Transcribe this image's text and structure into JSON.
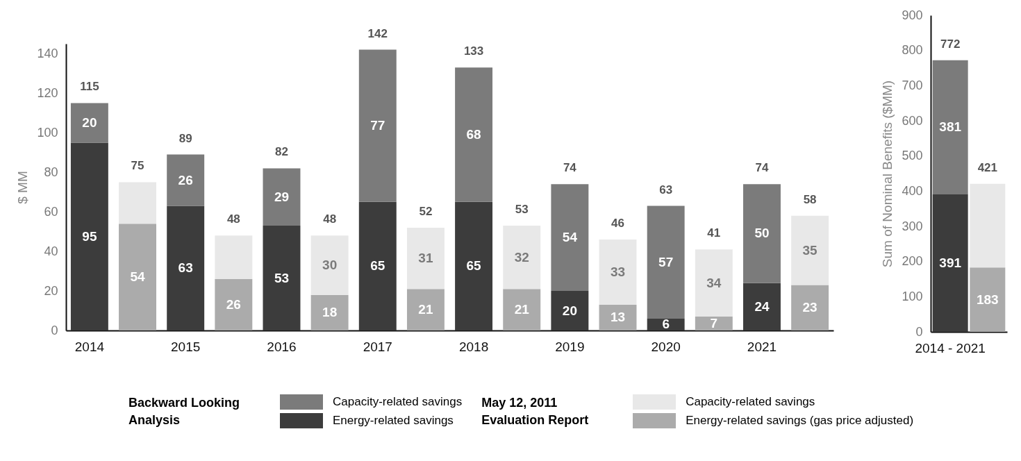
{
  "chart_data": [
    {
      "type": "bar",
      "stacked": true,
      "ylabel": "$ MM",
      "ylim": [
        0,
        145
      ],
      "yticks": [
        0,
        20,
        40,
        60,
        80,
        100,
        120,
        140
      ],
      "grid": false,
      "legend": "bottom",
      "legend_title": [
        "Backward Looking Analysis",
        "May 12, 2011 Evaluation Report"
      ],
      "categories": [
        "2014",
        null,
        "2015",
        null,
        "2016",
        null,
        "2017",
        null,
        "2018",
        null,
        "2019",
        null,
        "2020",
        null,
        "2021",
        null
      ],
      "series": [
        {
          "name": "Energy-related savings",
          "color": "#3c3c3c",
          "values": [
            95,
            null,
            63,
            null,
            53,
            null,
            65,
            null,
            65,
            null,
            20,
            null,
            6,
            null,
            24,
            null
          ],
          "value_labels": [
            "95",
            null,
            "63",
            null,
            "53",
            null,
            "65",
            null,
            "65",
            null,
            "20",
            null,
            "6",
            null,
            "24",
            null
          ]
        },
        {
          "name": "Capacity-related savings",
          "color": "#7b7b7b",
          "values": [
            20,
            null,
            26,
            null,
            29,
            null,
            77,
            null,
            68,
            null,
            54,
            null,
            57,
            null,
            50,
            null
          ],
          "value_labels": [
            "20",
            null,
            "26",
            null,
            "29",
            null,
            "77",
            null,
            "68",
            null,
            "54",
            null,
            "57",
            null,
            "50",
            null
          ]
        },
        {
          "name": "Energy-related savings (gas price adjusted)",
          "color": "#ababab",
          "values": [
            null,
            54,
            null,
            26,
            null,
            18,
            null,
            21,
            null,
            21,
            null,
            13,
            null,
            7,
            null,
            23
          ],
          "value_labels": [
            null,
            "54",
            null,
            "26",
            null,
            "18",
            null,
            "21",
            null,
            "21",
            null,
            "13",
            null,
            "7",
            null,
            "23"
          ]
        },
        {
          "name": "Capacity-related savings",
          "color": "#e8e8e8",
          "values": [
            null,
            21,
            null,
            22,
            null,
            30,
            null,
            31,
            null,
            32,
            null,
            33,
            null,
            34,
            null,
            35
          ],
          "value_labels": [
            null,
            null,
            null,
            null,
            null,
            "30",
            null,
            "31",
            null,
            "32",
            null,
            "33",
            null,
            "34",
            null,
            "35"
          ]
        }
      ],
      "totals": [
        "115",
        "75",
        "89",
        "48",
        "82",
        "48",
        "142",
        "52",
        "133",
        "53",
        "74",
        "46",
        "63",
        "41",
        "74",
        "58"
      ]
    },
    {
      "type": "bar",
      "stacked": true,
      "ylabel": "Sum of Nominal Benefits ($MM)",
      "ylim": [
        0,
        900
      ],
      "yticks": [
        0,
        100,
        200,
        300,
        400,
        500,
        600,
        700,
        800,
        900
      ],
      "grid": false,
      "categories": [
        "2014 - 2021",
        null
      ],
      "series": [
        {
          "color": "#3c3c3c",
          "values": [
            391,
            null
          ],
          "value_labels": [
            "391",
            null
          ]
        },
        {
          "color": "#7b7b7b",
          "values": [
            381,
            null
          ],
          "value_labels": [
            "381",
            null
          ]
        },
        {
          "color": "#ababab",
          "values": [
            null,
            183
          ],
          "value_labels": [
            null,
            "183"
          ]
        },
        {
          "color": "#e8e8e8",
          "values": [
            null,
            238
          ],
          "value_labels": [
            null,
            null
          ]
        }
      ],
      "totals": [
        "772",
        "421"
      ]
    }
  ]
}
